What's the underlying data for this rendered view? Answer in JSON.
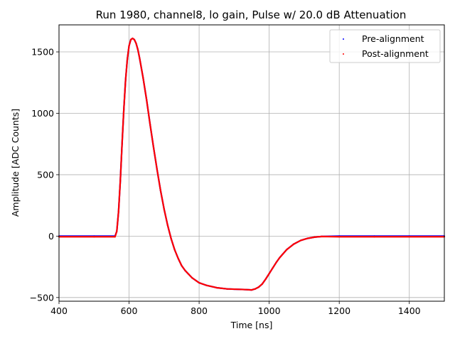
{
  "chart_data": {
    "type": "scatter",
    "title": "Run 1980, channel8, lo gain, Pulse w/ 20.0 dB Attenuation",
    "xlabel": "Time [ns]",
    "ylabel": "Amplitude [ADC Counts]",
    "xlim": [
      400,
      1500
    ],
    "ylim": [
      -530,
      1720
    ],
    "xticks": [
      400,
      600,
      800,
      1000,
      1200,
      1400
    ],
    "yticks": [
      -500,
      0,
      500,
      1000,
      1500
    ],
    "xtick_labels": [
      "400",
      "600",
      "800",
      "1000",
      "1200",
      "1400"
    ],
    "ytick_labels": [
      "−500",
      "0",
      "500",
      "1000",
      "1500"
    ],
    "grid": true,
    "legend_position": "top-right",
    "series": [
      {
        "name": "Pre-alignment",
        "color": "#0000ff",
        "x": [
          400,
          500,
          560,
          565,
          570,
          575,
          580,
          585,
          590,
          595,
          600,
          605,
          610,
          615,
          620,
          625,
          630,
          640,
          650,
          660,
          670,
          680,
          690,
          700,
          710,
          720,
          730,
          740,
          750,
          760,
          770,
          780,
          800,
          820,
          850,
          880,
          900,
          930,
          950,
          960,
          970,
          980,
          990,
          1000,
          1010,
          1020,
          1030,
          1050,
          1070,
          1090,
          1110,
          1130,
          1150,
          1200,
          1300,
          1400,
          1500
        ],
        "y": [
          0,
          0,
          0,
          40,
          200,
          450,
          750,
          1030,
          1270,
          1440,
          1550,
          1600,
          1610,
          1600,
          1570,
          1520,
          1450,
          1290,
          1110,
          910,
          720,
          540,
          370,
          220,
          90,
          -20,
          -110,
          -180,
          -240,
          -280,
          -310,
          -340,
          -380,
          -400,
          -420,
          -430,
          -432,
          -435,
          -438,
          -430,
          -415,
          -390,
          -350,
          -305,
          -260,
          -215,
          -175,
          -110,
          -65,
          -35,
          -18,
          -8,
          -3,
          0,
          0,
          0,
          0
        ]
      },
      {
        "name": "Post-alignment",
        "color": "#ff0000",
        "x": [
          400,
          500,
          560,
          565,
          570,
          575,
          580,
          585,
          590,
          595,
          600,
          605,
          610,
          615,
          620,
          625,
          630,
          640,
          650,
          660,
          670,
          680,
          690,
          700,
          710,
          720,
          730,
          740,
          750,
          760,
          770,
          780,
          800,
          820,
          850,
          880,
          900,
          930,
          950,
          960,
          970,
          980,
          990,
          1000,
          1010,
          1020,
          1030,
          1050,
          1070,
          1090,
          1110,
          1130,
          1150,
          1200,
          1300,
          1400,
          1500
        ],
        "y": [
          -5,
          -5,
          -5,
          40,
          200,
          450,
          750,
          1030,
          1270,
          1440,
          1550,
          1600,
          1610,
          1600,
          1570,
          1520,
          1450,
          1290,
          1110,
          910,
          720,
          540,
          370,
          220,
          90,
          -20,
          -110,
          -180,
          -240,
          -280,
          -310,
          -340,
          -380,
          -400,
          -420,
          -430,
          -432,
          -435,
          -438,
          -430,
          -415,
          -390,
          -350,
          -305,
          -260,
          -215,
          -175,
          -110,
          -65,
          -35,
          -18,
          -8,
          -3,
          -5,
          -5,
          -5,
          -5
        ]
      }
    ]
  }
}
